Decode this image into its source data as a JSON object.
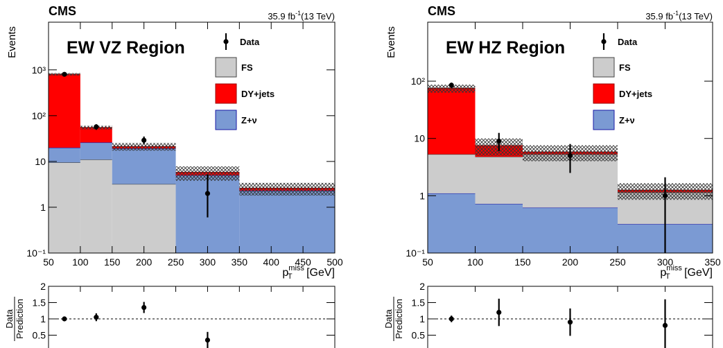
{
  "chart_data": [
    {
      "type": "stacked_histogram",
      "title": "CMS",
      "subtitle": "EW VZ Region",
      "lumi": "35.9 fb",
      "lumi_sup": "-1",
      "lumi_rest": "(13 TeV)",
      "y_label": "Events",
      "x_label": {
        "base": "p",
        "sub": "T",
        "sup": "miss",
        "unit": " [GeV]"
      },
      "bins": [
        50,
        100,
        150,
        250,
        350,
        500
      ],
      "series": [
        {
          "name": "FS",
          "color": "#cccccc",
          "edge": "#444444",
          "values": [
            9.5,
            11,
            3.2,
            0,
            0
          ]
        },
        {
          "name": "DY+jets",
          "color": "#ff0000",
          "edge": "#990000",
          "values": [
            780,
            29,
            2,
            0.8,
            0.3
          ]
        },
        {
          "name": "Z+ν",
          "color": "#7b9ad3",
          "edge": "#1a1aa6",
          "values": [
            10.5,
            15,
            16,
            5,
            2.3
          ]
        }
      ],
      "stack_order": [
        "FS",
        "Z+ν",
        "DY+jets"
      ],
      "total_uncertainty": [
        50,
        5,
        4,
        2,
        0.8
      ],
      "data": {
        "name": "Data",
        "x": [
          75,
          125,
          200,
          300
        ],
        "values": [
          800,
          57,
          29,
          2
        ],
        "err_low": [
          28,
          8,
          5,
          1.4
        ],
        "err_high": [
          28,
          8,
          6,
          3.2
        ]
      },
      "xlim": [
        50,
        500
      ],
      "xticks": [
        50,
        100,
        150,
        200,
        250,
        300,
        350,
        400,
        450,
        500
      ],
      "ylim": [
        0.1,
        11000
      ],
      "log_y": true,
      "yticks": [
        {
          "value": 0.1,
          "label": "10⁻¹"
        },
        1,
        10,
        {
          "value": 100,
          "label": "10²"
        },
        {
          "value": 1000,
          "label": "10³"
        }
      ],
      "legend": "upper right"
    },
    {
      "type": "ratio",
      "y_label_top": "Data",
      "y_label_bottom": "Prediction",
      "x": [
        75,
        125,
        200,
        300
      ],
      "values": [
        1.0,
        1.05,
        1.35,
        0.35
      ],
      "errors": [
        0.03,
        0.12,
        0.17,
        0.25
      ],
      "reference": 1,
      "xlim": [
        50,
        500
      ],
      "xticks": [
        50,
        100,
        150,
        200,
        250,
        300,
        350,
        400,
        450,
        500
      ],
      "ylim": [
        0,
        2
      ],
      "yticks": [
        0.5,
        1,
        1.5,
        2
      ]
    },
    {
      "type": "stacked_histogram",
      "title": "CMS",
      "subtitle": "EW HZ Region",
      "lumi": "35.9 fb",
      "lumi_sup": "-1",
      "lumi_rest": "(13 TeV)",
      "y_label": "Events",
      "x_label": {
        "base": "p",
        "sub": "T",
        "sup": "miss",
        "unit": " [GeV]"
      },
      "bins": [
        50,
        100,
        150,
        250,
        350
      ],
      "series": [
        {
          "name": "FS",
          "color": "#cccccc",
          "edge": "#444444",
          "values": [
            4.2,
            4.08,
            4.68,
            0.83
          ]
        },
        {
          "name": "DY+jets",
          "color": "#ff0000",
          "edge": "#990000",
          "values": [
            69.7,
            2.7,
            0.5,
            0.1
          ]
        },
        {
          "name": "Z+ν",
          "color": "#7b9ad3",
          "edge": "#1a1aa6",
          "values": [
            1.1,
            0.72,
            0.62,
            0.32
          ]
        }
      ],
      "stack_order": [
        "Z+ν",
        "FS",
        "DY+jets"
      ],
      "total_uncertainty": [
        12,
        2.5,
        1.8,
        0.4
      ],
      "data": {
        "name": "Data",
        "x": [
          75,
          125,
          200,
          300
        ],
        "values": [
          85,
          9,
          5,
          1
        ],
        "err_low": [
          9,
          3,
          2.5,
          1
        ],
        "err_high": [
          9,
          3.5,
          3,
          1.1
        ]
      },
      "xlim": [
        50,
        350
      ],
      "xticks": [
        50,
        100,
        150,
        200,
        250,
        300,
        350
      ],
      "ylim": [
        0.1,
        1070
      ],
      "log_y": true,
      "yticks": [
        {
          "value": 0.1,
          "label": "10⁻¹"
        },
        1,
        10,
        {
          "value": 100,
          "label": "10²"
        }
      ],
      "legend": "upper right"
    },
    {
      "type": "ratio",
      "y_label_top": "Data",
      "y_label_bottom": "Prediction",
      "x": [
        75,
        125,
        200,
        300
      ],
      "values": [
        1.0,
        1.2,
        0.9,
        0.8
      ],
      "errors": [
        0.1,
        0.42,
        0.42,
        0.8
      ],
      "reference": 1,
      "xlim": [
        50,
        350
      ],
      "xticks": [
        50,
        100,
        150,
        200,
        250,
        300,
        350
      ],
      "ylim": [
        0,
        2
      ],
      "yticks": [
        0.5,
        1,
        1.5,
        2
      ]
    }
  ]
}
